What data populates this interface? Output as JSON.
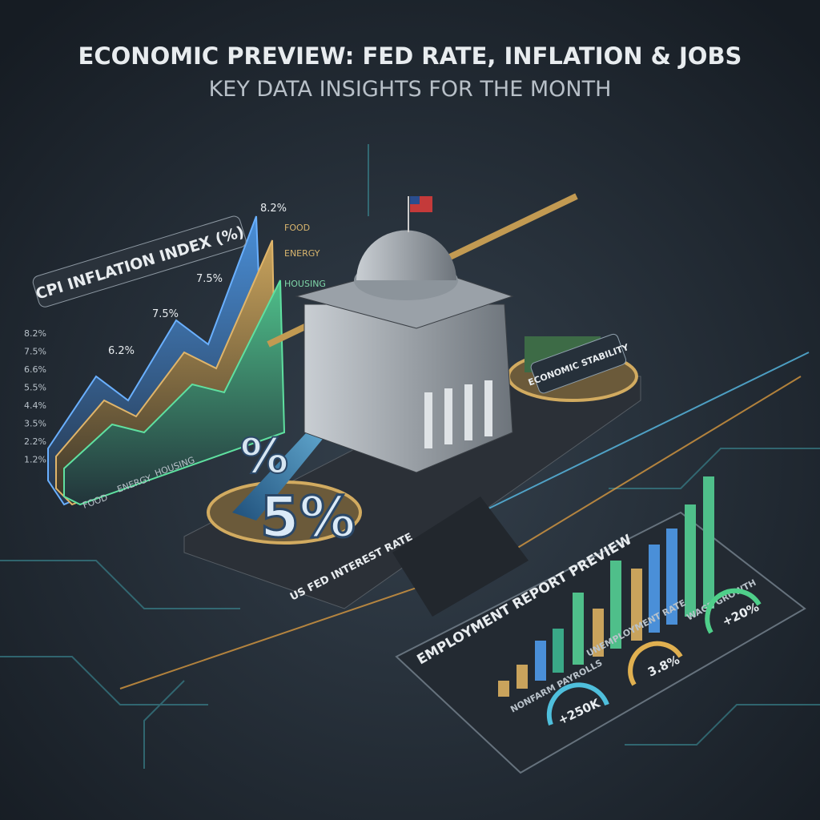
{
  "header": {
    "title": "ECONOMIC PREVIEW: FED RATE, INFLATION & JOBS",
    "subtitle": "KEY DATA INSIGHTS FOR THE MONTH"
  },
  "cpi_panel": {
    "title": "CPI INFLATION INDEX (%)",
    "point_labels": [
      "8.2%",
      "7.5%",
      "7.5%",
      "6.2%"
    ],
    "legend": [
      "FOOD",
      "ENERGY",
      "HOUSING"
    ],
    "axis_labels": [
      "8.2%",
      "7.5%",
      "6.6%",
      "5.5%",
      "4.4%",
      "3.5%",
      "2.2%",
      "1.2%"
    ],
    "x_labels": [
      "FOOD",
      "ENERGY",
      "HOUSING"
    ]
  },
  "fed_panel": {
    "rate_label": "5%",
    "symbol": "%",
    "caption": "US FED INTEREST RATE",
    "scale_label": "ECONOMIC STABILITY"
  },
  "employment_panel": {
    "title": "EMPLOYMENT REPORT PREVIEW",
    "metrics": [
      {
        "label": "NONFARM PAYROLLS",
        "value": "+250K"
      },
      {
        "label": "UNEMPLOYMENT RATE",
        "value": "3.8%"
      },
      {
        "label": "WAGE GROWTH",
        "value": "+20%"
      }
    ]
  }
}
